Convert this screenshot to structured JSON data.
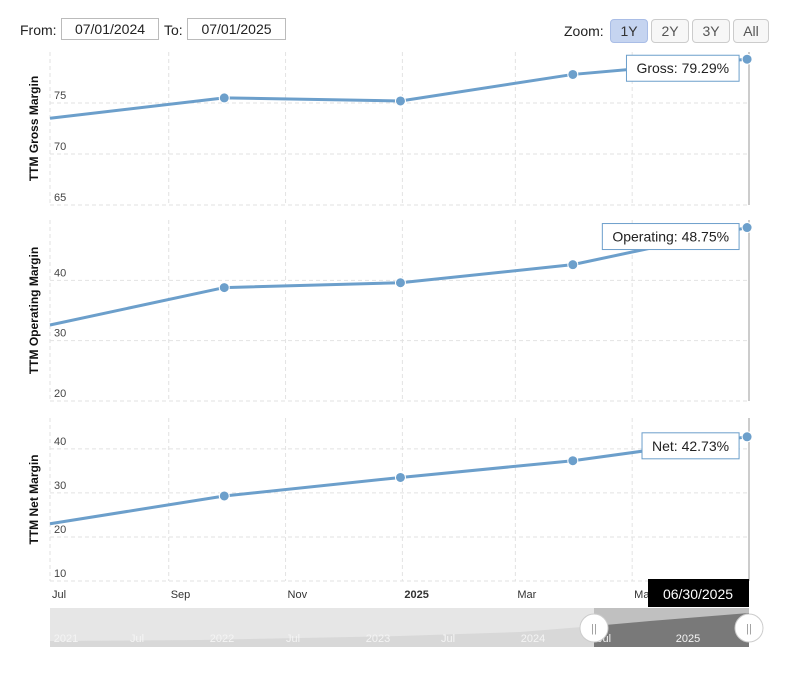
{
  "toolbar": {
    "from_label": "From:",
    "from_value": "07/01/2024",
    "to_label": "To:",
    "to_value": "07/01/2025",
    "zoom_label": "Zoom:",
    "zoom_options": [
      "1Y",
      "2Y",
      "3Y",
      "All"
    ],
    "zoom_selected": "1Y"
  },
  "colors": {
    "series": "#6c9fcb",
    "grid": "#e2e2e2",
    "tooltip_border": "#6c9fcb",
    "navigator_fill": "#7a7a7a",
    "selected_date_bg": "#000000"
  },
  "chart_data": [
    {
      "type": "line",
      "ylabel": "TTM Gross Margin",
      "yticks": [
        65,
        70,
        75
      ],
      "ylim": [
        65,
        80
      ],
      "x": [
        "2024-07-01",
        "2024-09-30",
        "2024-12-31",
        "2025-03-31",
        "2025-06-30"
      ],
      "values": [
        73.5,
        75.5,
        75.2,
        77.8,
        79.29
      ],
      "tooltip": "Gross: 79.29%"
    },
    {
      "type": "line",
      "ylabel": "TTM Operating Margin",
      "yticks": [
        20,
        30,
        40
      ],
      "ylim": [
        20,
        50
      ],
      "x": [
        "2024-07-01",
        "2024-09-30",
        "2024-12-31",
        "2025-03-31",
        "2025-06-30"
      ],
      "values": [
        32.6,
        38.8,
        39.6,
        42.6,
        48.75
      ],
      "tooltip": "Operating: 48.75%"
    },
    {
      "type": "line",
      "ylabel": "TTM Net Margin",
      "yticks": [
        10,
        20,
        30,
        40
      ],
      "ylim": [
        10,
        47
      ],
      "x": [
        "2024-07-01",
        "2024-09-30",
        "2024-12-31",
        "2025-03-31",
        "2025-06-30"
      ],
      "values": [
        23.0,
        29.3,
        33.5,
        37.3,
        42.73
      ],
      "tooltip": "Net: 42.73%"
    }
  ],
  "x_axis": {
    "ticks": [
      {
        "label": "Jul",
        "date": "2024-07-01",
        "bold": false
      },
      {
        "label": "Sep",
        "date": "2024-09-01",
        "bold": false
      },
      {
        "label": "Nov",
        "date": "2024-11-01",
        "bold": false
      },
      {
        "label": "2025",
        "date": "2025-01-01",
        "bold": true
      },
      {
        "label": "Mar",
        "date": "2025-03-01",
        "bold": false
      },
      {
        "label": "Ma",
        "date": "2025-05-01",
        "bold": false
      }
    ],
    "range": [
      "2024-07-01",
      "2025-07-01"
    ],
    "selected_date": "06/30/2025"
  },
  "navigator": {
    "labels": [
      "2021",
      "Jul",
      "2022",
      "Jul",
      "2023",
      "Jul",
      "2024",
      "Jul",
      "2025"
    ],
    "handle_glyph": "||"
  }
}
